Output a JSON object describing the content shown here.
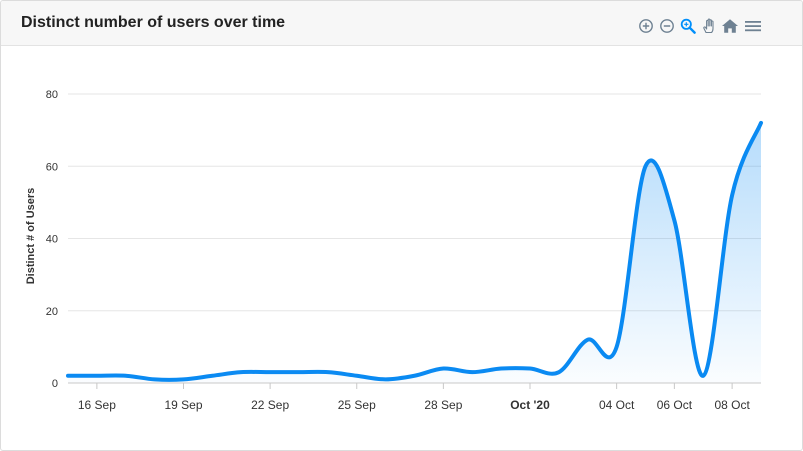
{
  "header": {
    "title": "Distinct number of users over time"
  },
  "toolbar": {
    "tools": [
      {
        "name": "zoom-in-icon"
      },
      {
        "name": "zoom-out-icon"
      },
      {
        "name": "selection-zoom-icon"
      },
      {
        "name": "pan-icon"
      },
      {
        "name": "reset-home-icon"
      },
      {
        "name": "menu-icon"
      }
    ]
  },
  "chart_data": {
    "type": "area",
    "title": "",
    "xlabel": "",
    "ylabel": "Distinct # of Users",
    "ylim": [
      0,
      80
    ],
    "yticks": [
      0,
      20,
      40,
      60,
      80
    ],
    "x_start": "2020-09-15",
    "x_end": "2020-10-09",
    "xticks": [
      {
        "date": "2020-09-16",
        "label": "16 Sep",
        "bold": false
      },
      {
        "date": "2020-09-19",
        "label": "19 Sep",
        "bold": false
      },
      {
        "date": "2020-09-22",
        "label": "22 Sep",
        "bold": false
      },
      {
        "date": "2020-09-25",
        "label": "25 Sep",
        "bold": false
      },
      {
        "date": "2020-09-28",
        "label": "28 Sep",
        "bold": false
      },
      {
        "date": "2020-10-01",
        "label": "Oct '20",
        "bold": true
      },
      {
        "date": "2020-10-04",
        "label": "04 Oct",
        "bold": false
      },
      {
        "date": "2020-10-06",
        "label": "06 Oct",
        "bold": false
      },
      {
        "date": "2020-10-08",
        "label": "08 Oct",
        "bold": false
      }
    ],
    "grid": true,
    "series": [
      {
        "color": "#0a8af2",
        "points": [
          {
            "x": "2020-09-15",
            "y": 2
          },
          {
            "x": "2020-09-16",
            "y": 2
          },
          {
            "x": "2020-09-17",
            "y": 2
          },
          {
            "x": "2020-09-18",
            "y": 1
          },
          {
            "x": "2020-09-19",
            "y": 1
          },
          {
            "x": "2020-09-20",
            "y": 2
          },
          {
            "x": "2020-09-21",
            "y": 3
          },
          {
            "x": "2020-09-22",
            "y": 3
          },
          {
            "x": "2020-09-23",
            "y": 3
          },
          {
            "x": "2020-09-24",
            "y": 3
          },
          {
            "x": "2020-09-25",
            "y": 2
          },
          {
            "x": "2020-09-26",
            "y": 1
          },
          {
            "x": "2020-09-27",
            "y": 2
          },
          {
            "x": "2020-09-28",
            "y": 4
          },
          {
            "x": "2020-09-29",
            "y": 3
          },
          {
            "x": "2020-09-30",
            "y": 4
          },
          {
            "x": "2020-10-01",
            "y": 4
          },
          {
            "x": "2020-10-02",
            "y": 3
          },
          {
            "x": "2020-10-03",
            "y": 12
          },
          {
            "x": "2020-10-04",
            "y": 10
          },
          {
            "x": "2020-10-05",
            "y": 60
          },
          {
            "x": "2020-10-06",
            "y": 45
          },
          {
            "x": "2020-10-07",
            "y": 2
          },
          {
            "x": "2020-10-08",
            "y": 52
          },
          {
            "x": "2020-10-09",
            "y": 72
          }
        ]
      }
    ]
  }
}
